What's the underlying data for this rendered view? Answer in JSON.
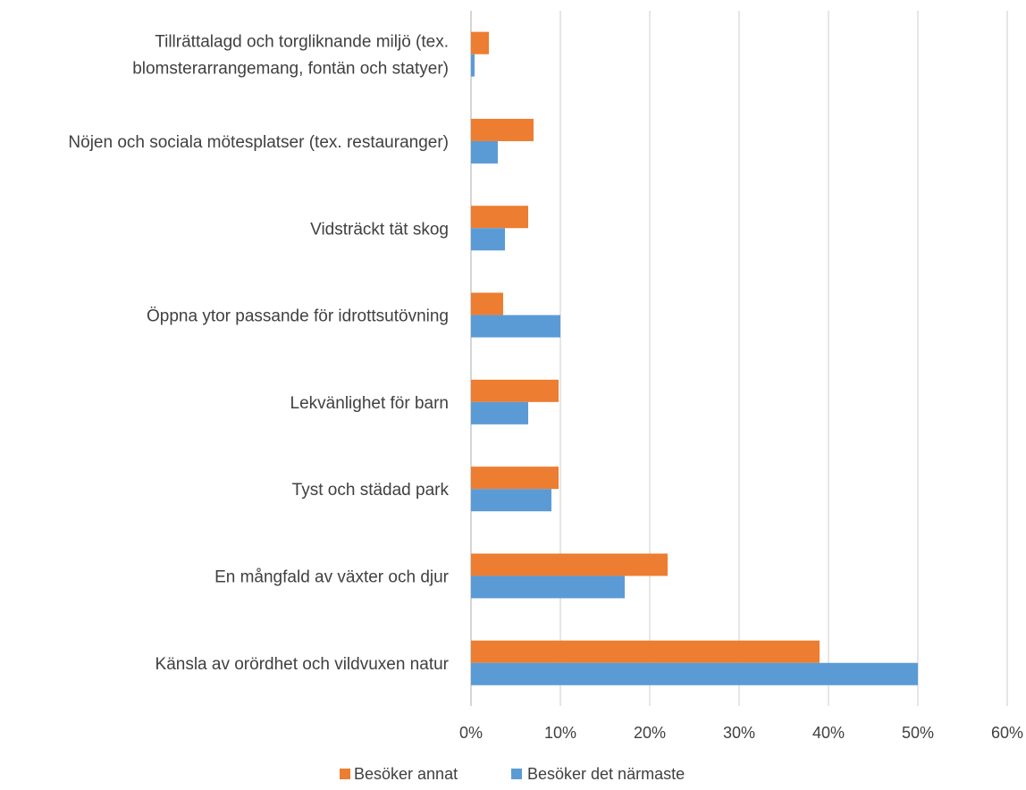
{
  "chart_data": {
    "type": "bar",
    "orientation": "horizontal",
    "categories": [
      "Tillrättalagd och torgliknande miljö (tex. blomsterarrangemang, fontän och statyer)",
      "Nöjen och sociala mötesplatser (tex. restauranger)",
      "Vidsträckt tät skog",
      "Öppna ytor passande för idrottsutövning",
      "Lekvänlighet för barn",
      "Tyst och städad park",
      "En mångfald av växter och djur",
      "Känsla av orördhet och vildvuxen natur"
    ],
    "category_lines": [
      [
        "Tillrättalagd och torgliknande miljö (tex.",
        "blomsterarrangemang, fontän och statyer)"
      ],
      [
        "Nöjen och sociala mötesplatser (tex. restauranger)"
      ],
      [
        "Vidsträckt tät skog"
      ],
      [
        "Öppna ytor passande för idrottsutövning"
      ],
      [
        "Lekvänlighet för barn"
      ],
      [
        "Tyst och städad park"
      ],
      [
        "En mångfald av växter och djur"
      ],
      [
        "Känsla av orördhet och vildvuxen natur"
      ]
    ],
    "series": [
      {
        "name": "Besöker annat",
        "color": "#ED7D31",
        "values": [
          2.0,
          7.0,
          6.4,
          3.6,
          9.8,
          9.8,
          22.0,
          39.0
        ]
      },
      {
        "name": "Besöker det närmaste",
        "color": "#5B9BD5",
        "values": [
          0.4,
          3.0,
          3.8,
          10.0,
          6.4,
          9.0,
          17.2,
          50.0
        ]
      }
    ],
    "xlim": [
      0,
      60
    ],
    "x_ticks": [
      0,
      10,
      20,
      30,
      40,
      50,
      60
    ],
    "x_tick_labels": [
      "0%",
      "10%",
      "20%",
      "30%",
      "40%",
      "50%",
      "60%"
    ],
    "unit": "%",
    "grid": true,
    "legend_position": "bottom",
    "title": "",
    "xlabel": "",
    "ylabel": ""
  }
}
